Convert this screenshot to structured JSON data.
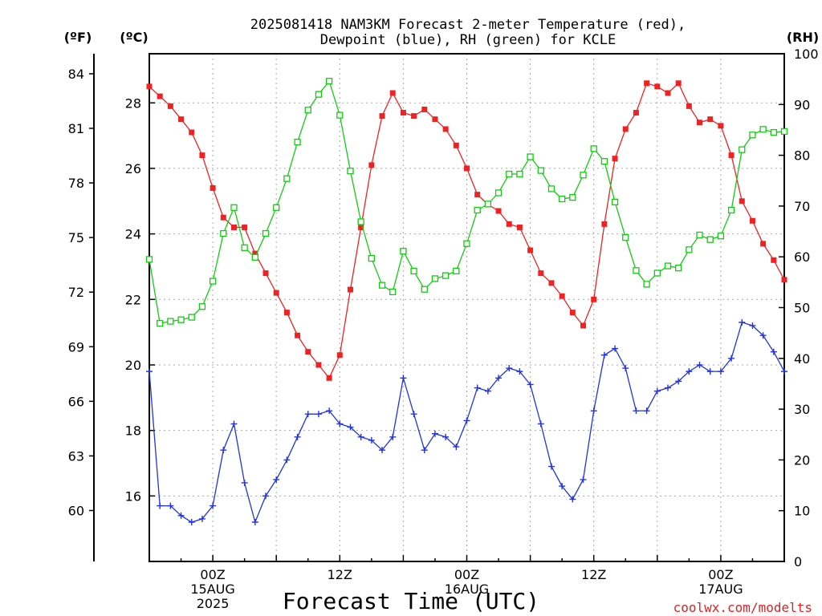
{
  "chart_data": {
    "type": "line",
    "title_line1": "2025081418 NAM3KM Forecast 2-meter Temperature (red),",
    "title_line2": "Dewpoint (blue), RH (green) for KCLE",
    "xlabel": "Forecast Time (UTC)",
    "watermark": "coolwx.com/modelts",
    "y_left_outer_label": "(ºF)",
    "y_left_inner_label": "(ºC)",
    "y_right_label": "(RH)",
    "fahrenheit_ticks": [
      "60",
      "63",
      "66",
      "69",
      "72",
      "75",
      "78",
      "81",
      "84"
    ],
    "celsius_ticks": [
      "16",
      "18",
      "20",
      "22",
      "24",
      "26",
      "28"
    ],
    "rh_ticks": [
      "0",
      "10",
      "20",
      "30",
      "40",
      "50",
      "60",
      "70",
      "80",
      "90",
      "100"
    ],
    "x_ticks": [
      {
        "hour": 6,
        "lines": [
          "00Z",
          "15AUG",
          "2025"
        ]
      },
      {
        "hour": 18,
        "lines": [
          "12Z"
        ]
      },
      {
        "hour": 30,
        "lines": [
          "00Z",
          "16AUG"
        ]
      },
      {
        "hour": 42,
        "lines": [
          "12Z"
        ]
      },
      {
        "hour": 54,
        "lines": [
          "00Z",
          "17AUG"
        ]
      }
    ],
    "xlim": [
      0,
      60
    ],
    "celsius_lim": [
      14,
      29.5
    ],
    "fahrenheit_lim": [
      57.2,
      85.1
    ],
    "rh_lim": [
      0,
      100
    ],
    "grid": true,
    "colors": {
      "temperature": "#ee2222",
      "dewpoint": "#2233dd",
      "rh": "#11cc11",
      "grid": "#aaaaaa",
      "watermark": "#dd2222"
    },
    "series": [
      {
        "name": "Temperature",
        "axis": "celsius",
        "marker": "filled-square",
        "x": [
          0,
          1,
          2,
          3,
          4,
          5,
          6,
          7,
          8,
          9,
          10,
          11,
          12,
          13,
          14,
          15,
          16,
          17,
          18,
          19,
          20,
          21,
          22,
          23,
          24,
          25,
          26,
          27,
          28,
          29,
          30,
          31,
          32,
          33,
          34,
          35,
          36,
          37,
          38,
          39,
          40,
          41,
          42,
          43,
          44,
          45,
          46,
          47,
          48,
          49,
          50,
          51,
          52,
          53,
          54,
          55,
          56,
          57,
          58,
          59,
          60
        ],
        "values": [
          28.5,
          28.2,
          27.9,
          27.5,
          27.1,
          26.4,
          25.4,
          24.5,
          24.2,
          24.2,
          23.4,
          22.8,
          22.2,
          21.6,
          20.9,
          20.4,
          20.0,
          19.6,
          20.3,
          22.3,
          24.2,
          26.1,
          27.6,
          28.3,
          27.7,
          27.6,
          27.8,
          27.5,
          27.2,
          26.7,
          26.0,
          25.2,
          24.9,
          24.7,
          24.3,
          24.2,
          23.5,
          22.8,
          22.5,
          22.1,
          21.6,
          21.2,
          22.0,
          24.3,
          26.3,
          27.2,
          27.7,
          28.6,
          28.5,
          28.3,
          28.6,
          27.9,
          27.4,
          27.5,
          27.3,
          26.4,
          25.0,
          24.4,
          23.7,
          23.2,
          22.6
        ]
      },
      {
        "name": "Dewpoint",
        "axis": "celsius",
        "marker": "plus",
        "x": [
          0,
          1,
          2,
          3,
          4,
          5,
          6,
          7,
          8,
          9,
          10,
          11,
          12,
          13,
          14,
          15,
          16,
          17,
          18,
          19,
          20,
          21,
          22,
          23,
          24,
          25,
          26,
          27,
          28,
          29,
          30,
          31,
          32,
          33,
          34,
          35,
          36,
          37,
          38,
          39,
          40,
          41,
          42,
          43,
          44,
          45,
          46,
          47,
          48,
          49,
          50,
          51,
          52,
          53,
          54,
          55,
          56,
          57,
          58,
          59,
          60
        ],
        "values": [
          19.8,
          15.7,
          15.7,
          15.4,
          15.2,
          15.3,
          15.7,
          17.4,
          18.2,
          16.4,
          15.2,
          16.0,
          16.5,
          17.1,
          17.8,
          18.5,
          18.5,
          18.6,
          18.2,
          18.1,
          17.8,
          17.7,
          17.4,
          17.8,
          19.6,
          18.5,
          17.4,
          17.9,
          17.8,
          17.5,
          18.3,
          19.3,
          19.2,
          19.6,
          19.9,
          19.8,
          19.4,
          18.2,
          16.9,
          16.3,
          15.9,
          16.5,
          18.6,
          20.3,
          20.5,
          19.9,
          18.6,
          18.6,
          19.2,
          19.3,
          19.5,
          19.8,
          20.0,
          19.8,
          19.8,
          20.2,
          21.3,
          21.2,
          20.9,
          20.4,
          19.8
        ]
      },
      {
        "name": "RH",
        "axis": "rh",
        "marker": "open-square",
        "x": [
          0,
          1,
          2,
          3,
          4,
          5,
          6,
          7,
          8,
          9,
          10,
          11,
          12,
          13,
          14,
          15,
          16,
          17,
          18,
          19,
          20,
          21,
          22,
          23,
          24,
          25,
          26,
          27,
          28,
          29,
          30,
          31,
          32,
          33,
          34,
          35,
          36,
          37,
          38,
          39,
          40,
          41,
          42,
          43,
          44,
          45,
          46,
          47,
          48,
          49,
          50,
          51,
          52,
          53,
          54,
          55,
          56,
          57,
          58,
          59,
          60
        ],
        "values": [
          59.5,
          46.9,
          47.3,
          47.6,
          48.1,
          50.2,
          55.2,
          64.6,
          69.7,
          61.8,
          59.9,
          64.6,
          69.7,
          75.4,
          82.6,
          88.9,
          92.0,
          94.6,
          87.9,
          76.9,
          66.9,
          59.7,
          54.4,
          53.1,
          61.1,
          57.2,
          53.6,
          55.7,
          56.3,
          57.2,
          62.6,
          69.2,
          70.4,
          72.6,
          76.3,
          76.3,
          79.7,
          77.0,
          73.4,
          71.4,
          71.7,
          76.1,
          81.3,
          78.8,
          70.8,
          63.8,
          57.3,
          54.6,
          56.8,
          58.2,
          57.8,
          61.4,
          64.3,
          63.4,
          64.1,
          69.2,
          81.1,
          84.0,
          85.1,
          84.5,
          84.7
        ]
      }
    ]
  }
}
